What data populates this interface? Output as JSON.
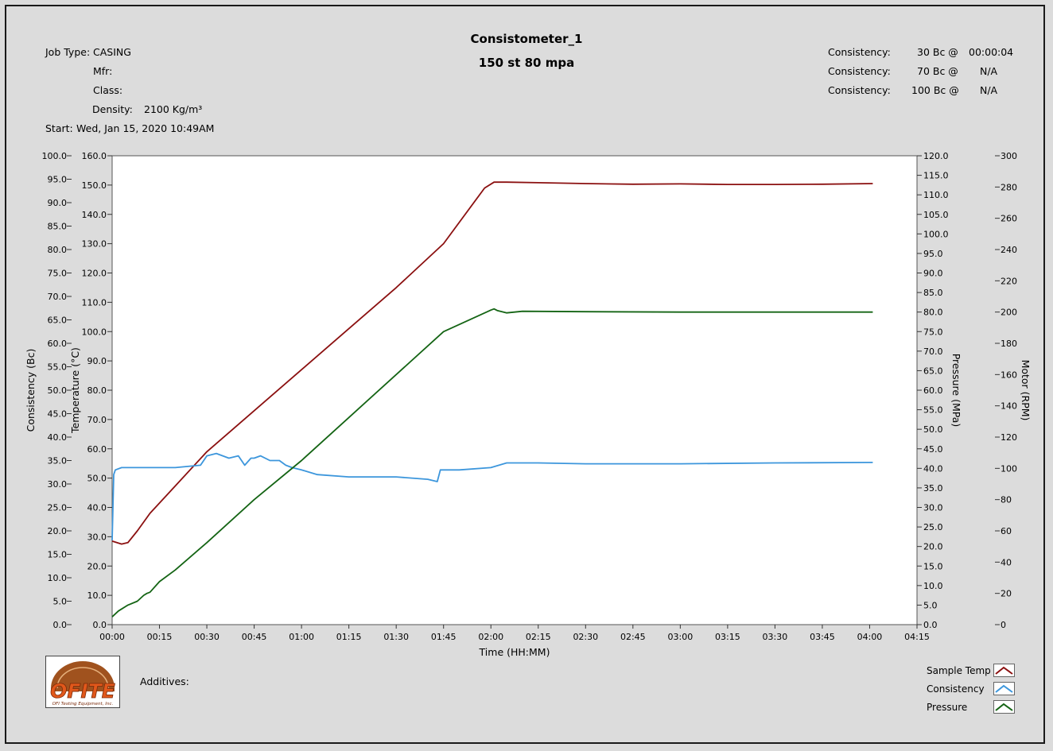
{
  "header": {
    "title": "Consistometer_1",
    "subtitle": "150 st 80 mpa",
    "job_type_label": "Job Type:",
    "job_type_value": "CASING",
    "mfr_label": "Mfr:",
    "class_label": "Class:",
    "density_label": "Density:",
    "density_value": "2100 Kg/m³",
    "start_label": "Start:",
    "start_value": "Wed, Jan 15, 2020 10:49AM",
    "consistency": [
      {
        "label": "Consistency:",
        "bc": "30 Bc @",
        "time": "00:00:04"
      },
      {
        "label": "Consistency:",
        "bc": "70 Bc @",
        "time": "N/A"
      },
      {
        "label": "Consistency:",
        "bc": "100 Bc @",
        "time": "N/A"
      }
    ]
  },
  "footer": {
    "additives_label": "Additives:",
    "logo_text": "OFITE",
    "logo_subtext": "OFI Testing Equipment, Inc."
  },
  "legend": [
    {
      "name": "Sample Temp",
      "color": "#8b1010"
    },
    {
      "name": "Consistency",
      "color": "#3c96dc"
    },
    {
      "name": "Pressure",
      "color": "#146414"
    }
  ],
  "chart_data": {
    "type": "line",
    "xlabel": "Time (HH:MM)",
    "x_ticks": [
      "00:00",
      "00:15",
      "00:30",
      "00:45",
      "01:00",
      "01:15",
      "01:30",
      "01:45",
      "02:00",
      "02:15",
      "02:30",
      "02:45",
      "03:00",
      "03:15",
      "03:30",
      "03:45",
      "04:00",
      "04:15"
    ],
    "xlim_minutes": [
      0,
      255
    ],
    "axes": {
      "consistency": {
        "label": "Consistency (Bc)",
        "lim": [
          0,
          100
        ],
        "ticks": [
          "0.0",
          "5.0",
          "10.0",
          "15.0",
          "20.0",
          "25.0",
          "30.0",
          "35.0",
          "40.0",
          "45.0",
          "50.0",
          "55.0",
          "60.0",
          "65.0",
          "70.0",
          "75.0",
          "80.0",
          "85.0",
          "90.0",
          "95.0",
          "100.0"
        ]
      },
      "temperature": {
        "label": "Temperature (°C)",
        "lim": [
          0,
          160
        ],
        "ticks": [
          "0.0",
          "10.0",
          "20.0",
          "30.0",
          "40.0",
          "50.0",
          "60.0",
          "70.0",
          "80.0",
          "90.0",
          "100.0",
          "110.0",
          "120.0",
          "130.0",
          "140.0",
          "150.0",
          "160.0"
        ]
      },
      "pressure": {
        "label": "Pressure (MPa)",
        "lim": [
          0,
          120
        ],
        "ticks": [
          "0.0",
          "5.0",
          "10.0",
          "15.0",
          "20.0",
          "25.0",
          "30.0",
          "35.0",
          "40.0",
          "45.0",
          "50.0",
          "55.0",
          "60.0",
          "65.0",
          "70.0",
          "75.0",
          "80.0",
          "85.0",
          "90.0",
          "95.0",
          "100.0",
          "105.0",
          "110.0",
          "115.0",
          "120.0"
        ]
      },
      "motor": {
        "label": "Motor (RPM)",
        "lim": [
          0,
          300
        ],
        "ticks": [
          "0",
          "20",
          "40",
          "60",
          "80",
          "100",
          "120",
          "140",
          "160",
          "180",
          "200",
          "220",
          "240",
          "260",
          "280",
          "300"
        ]
      }
    },
    "series": [
      {
        "name": "Sample Temp",
        "axis": "temperature",
        "color": "#8b1010",
        "x": [
          0,
          3,
          5,
          8,
          12,
          18,
          30,
          45,
          60,
          75,
          90,
          105,
          118,
          121,
          125,
          135,
          150,
          165,
          180,
          195,
          210,
          225,
          241
        ],
        "y": [
          28.5,
          27.5,
          28,
          32,
          38,
          45,
          59,
          73,
          87,
          101,
          115,
          130,
          149,
          151,
          151,
          150.8,
          150.5,
          150.3,
          150.4,
          150.2,
          150.2,
          150.3,
          150.5
        ]
      },
      {
        "name": "Consistency",
        "axis": "consistency",
        "color": "#3c96dc",
        "x": [
          0,
          0.5,
          1,
          3,
          10,
          20,
          28,
          30,
          33,
          37,
          40,
          42,
          44,
          45,
          47,
          50,
          53,
          55,
          57,
          60,
          65,
          75,
          90,
          100,
          103,
          104,
          110,
          120,
          125,
          135,
          150,
          180,
          210,
          241
        ],
        "y": [
          18,
          32,
          33,
          33.5,
          33.5,
          33.5,
          34,
          36,
          36.5,
          35.5,
          36,
          34,
          35.5,
          35.5,
          36,
          35,
          35,
          34,
          33.5,
          33,
          32,
          31.5,
          31.5,
          31,
          30.5,
          33,
          33,
          33.5,
          34.5,
          34.5,
          34.3,
          34.3,
          34.5,
          34.6
        ]
      },
      {
        "name": "Pressure",
        "axis": "pressure",
        "color": "#146414",
        "x": [
          0,
          2,
          5,
          8,
          10,
          11,
          12,
          15,
          20,
          30,
          45,
          60,
          75,
          90,
          105,
          120,
          121,
          122,
          125,
          130,
          150,
          180,
          210,
          241
        ],
        "y": [
          2,
          3.5,
          5,
          6,
          7.5,
          8,
          8.3,
          11,
          14,
          21,
          32,
          42,
          53,
          64,
          75,
          80.5,
          80.8,
          80.4,
          79.8,
          80.2,
          80.1,
          80,
          80,
          80
        ]
      }
    ]
  }
}
